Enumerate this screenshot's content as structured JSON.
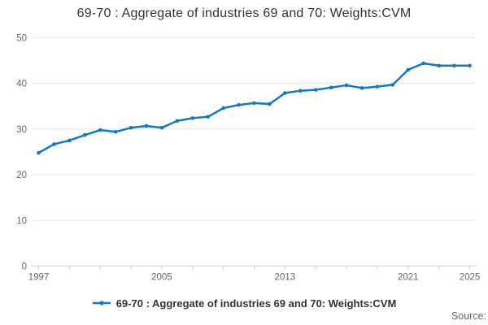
{
  "labels": {
    "source": "Source:"
  },
  "colors": {
    "line": "#1479be",
    "grid": "#e6e6e6",
    "axis": "#ccd6eb",
    "tick_label": "#666666",
    "title": "#333333",
    "legend_text": "#333333",
    "source_text": "#666666"
  },
  "chart_data": {
    "type": "line",
    "title": "69-70 : Aggregate of industries 69 and 70: Weights:CVM",
    "xlabel": "",
    "ylabel": "",
    "x": [
      1997,
      1998,
      1999,
      2000,
      2001,
      2002,
      2003,
      2004,
      2005,
      2006,
      2007,
      2008,
      2009,
      2010,
      2011,
      2012,
      2013,
      2014,
      2015,
      2016,
      2017,
      2018,
      2019,
      2020,
      2021,
      2022,
      2023,
      2024,
      2025
    ],
    "series": [
      {
        "name": "69-70 : Aggregate of industries 69 and 70: Weights:CVM",
        "values": [
          24.8,
          26.7,
          27.5,
          28.7,
          29.8,
          29.4,
          30.3,
          30.7,
          30.3,
          31.8,
          32.4,
          32.7,
          34.6,
          35.3,
          35.7,
          35.5,
          37.9,
          38.4,
          38.6,
          39.1,
          39.6,
          39.0,
          39.3,
          39.7,
          43.0,
          44.4,
          43.9,
          43.9,
          43.9
        ]
      }
    ],
    "ylim": [
      0,
      50
    ],
    "yticks": [
      0,
      10,
      20,
      30,
      40,
      50
    ],
    "xticks_labeled": [
      1997,
      2005,
      2013,
      2021,
      2025
    ],
    "xtick_step": 2,
    "grid": "horizontal",
    "legend_position": "bottom"
  }
}
